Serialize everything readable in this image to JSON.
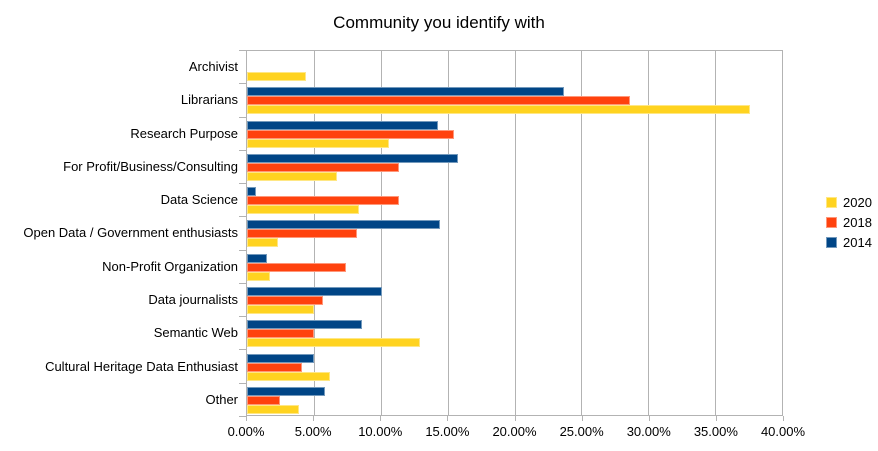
{
  "chart_data": {
    "type": "bar",
    "orientation": "horizontal",
    "title": "Community you identify with",
    "categories": [
      "Archivist",
      "Librarians",
      "Research Purpose",
      "For Profit/Business/Consulting",
      "Data Science",
      "Open Data / Government enthusiasts",
      "Non-Profit Organization",
      "Data journalists",
      "Semantic Web",
      "Cultural Heritage Data Enthusiast",
      "Other"
    ],
    "series": [
      {
        "name": "2020",
        "color": "#FFD320",
        "values": [
          4.4,
          37.6,
          10.6,
          6.7,
          8.4,
          2.3,
          1.7,
          5.0,
          12.9,
          6.2,
          3.9
        ]
      },
      {
        "name": "2018",
        "color": "#FF420E",
        "values": [
          0,
          28.6,
          15.5,
          11.4,
          11.4,
          8.2,
          7.4,
          5.7,
          5.0,
          4.1,
          2.5
        ]
      },
      {
        "name": "2014",
        "color": "#004586",
        "values": [
          0,
          23.7,
          14.3,
          15.8,
          0.7,
          14.4,
          1.5,
          10.1,
          8.6,
          5.0,
          5.8
        ]
      }
    ],
    "bar_order_top_to_bottom": [
      "2014",
      "2018",
      "2020"
    ],
    "xlabel": "",
    "ylabel": "",
    "x_axis": {
      "min": 0,
      "max": 40,
      "tick_step": 5,
      "unit": "%",
      "tick_labels": [
        "0.00%",
        "5.00%",
        "10.00%",
        "15.00%",
        "20.00%",
        "25.00%",
        "30.00%",
        "35.00%",
        "40.00%"
      ]
    },
    "legend": {
      "position": "right",
      "order": [
        "2020",
        "2018",
        "2014"
      ]
    },
    "grid": "vertical-only",
    "colors": {
      "background": "#ffffff",
      "gridline": "#b3b3b3",
      "text": "#000000"
    }
  }
}
